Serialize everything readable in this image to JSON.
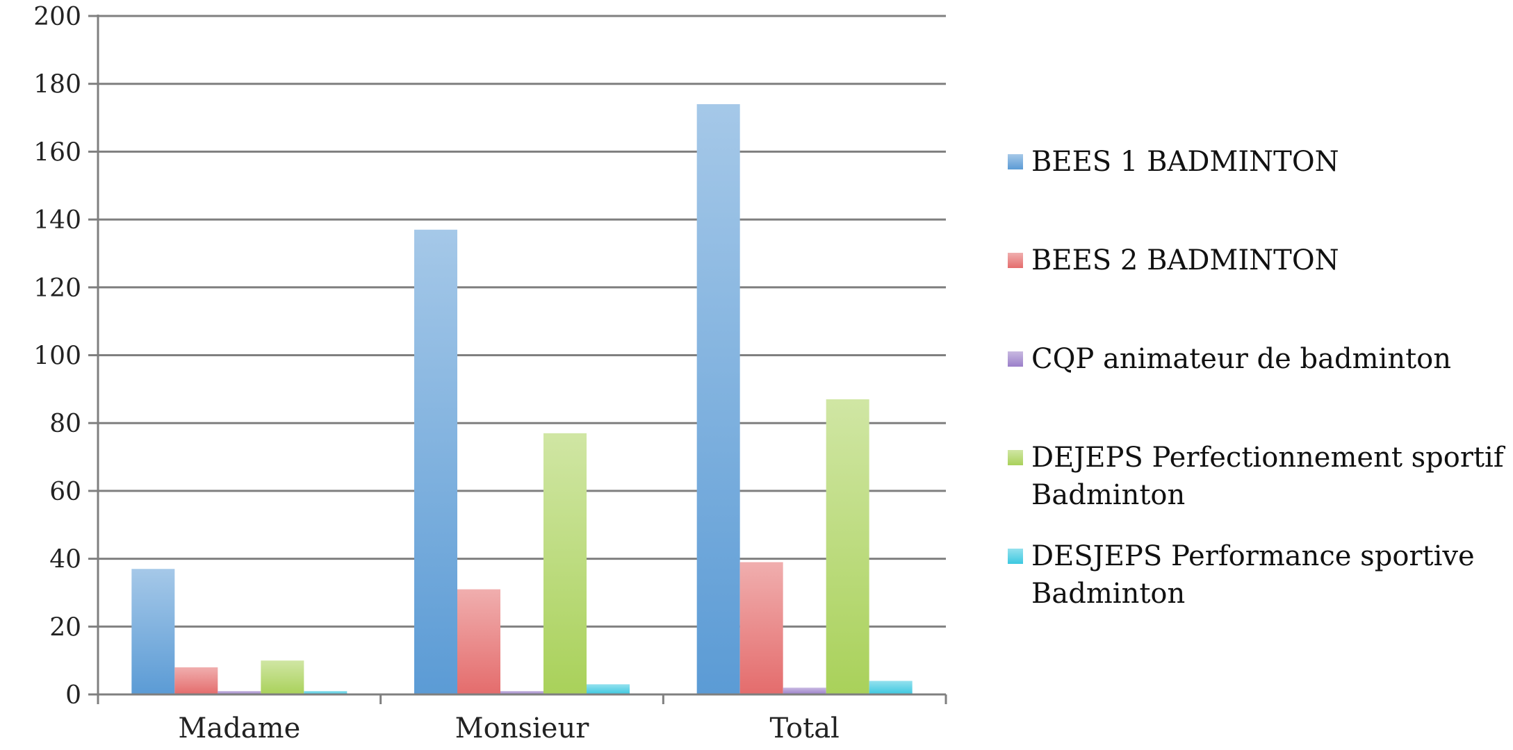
{
  "chart_data": {
    "type": "bar",
    "title": "",
    "xlabel": "",
    "ylabel": "",
    "ylim": [
      0,
      200
    ],
    "ytick_step": 20,
    "yticks": [
      "0",
      "20",
      "40",
      "60",
      "80",
      "100",
      "120",
      "140",
      "160",
      "180",
      "200"
    ],
    "grid": true,
    "legend_position": "right",
    "categories": [
      "Madame",
      "Monsieur",
      "Total"
    ],
    "series": [
      {
        "name": "BEES 1 BADMINTON",
        "color": "#5b9bd5",
        "values": [
          37,
          137,
          174
        ]
      },
      {
        "name": "BEES 2 BADMINTON",
        "color": "#e46c6c",
        "values": [
          8,
          31,
          39
        ]
      },
      {
        "name": "CQP animateur de badminton",
        "color": "#9b7fc9",
        "values": [
          1,
          1,
          2
        ]
      },
      {
        "name": "DEJEPS Perfectionnement sportif Badminton",
        "color": "#a9d15a",
        "values": [
          10,
          77,
          87
        ]
      },
      {
        "name": "DESJEPS Performance sportive Badminton",
        "color": "#3cc8e0",
        "values": [
          1,
          3,
          4
        ]
      }
    ]
  }
}
